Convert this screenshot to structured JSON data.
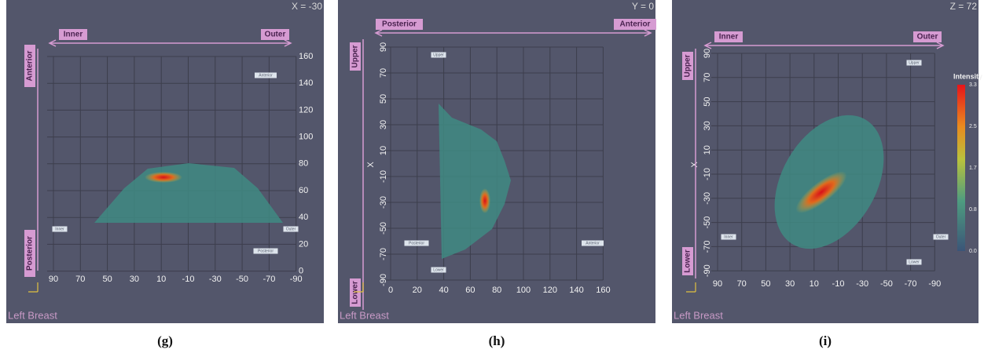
{
  "panels": [
    {
      "slice": "X = -30",
      "caption": "(g)",
      "footer": "Left Breast",
      "top_left": "Inner",
      "top_right": "Outer",
      "side_top": "Anterior",
      "side_bottom": "Posterior",
      "x_ticks": [
        "90",
        "70",
        "50",
        "30",
        "10",
        "-10",
        "-30",
        "-50",
        "-70",
        "-90"
      ],
      "y_ticks": [
        "160",
        "140",
        "120",
        "100",
        "80",
        "60",
        "40",
        "20",
        "0"
      ],
      "markers": [
        "Anterior",
        "Inner",
        "Outer",
        "Posterior"
      ]
    },
    {
      "slice": "Y = 0",
      "caption": "(h)",
      "footer": "Left Breast",
      "top_left": "Posterior",
      "top_right": "Anterior",
      "side_top": "Upper",
      "side_bottom": "Lower",
      "axis_label": "X",
      "x_ticks": [
        "0",
        "20",
        "40",
        "60",
        "80",
        "100",
        "120",
        "140",
        "160"
      ],
      "y_ticks": [
        "90",
        "70",
        "50",
        "30",
        "10",
        "-10",
        "-30",
        "-50",
        "-70",
        "-90"
      ],
      "markers": [
        "Upper",
        "Posterior",
        "Anterior",
        "Lower"
      ]
    },
    {
      "slice": "Z = 72",
      "caption": "(i)",
      "footer": "Left Breast",
      "top_left": "Inner",
      "top_right": "Outer",
      "side_top": "Upper",
      "side_bottom": "Lower",
      "axis_label": "X",
      "x_ticks": [
        "90",
        "70",
        "50",
        "30",
        "10",
        "-10",
        "-30",
        "-50",
        "-70",
        "-90"
      ],
      "y_ticks": [
        "90",
        "70",
        "50",
        "30",
        "10",
        "-10",
        "-30",
        "-50",
        "-70",
        "-90"
      ],
      "markers": [
        "Upper",
        "Inner",
        "Outer",
        "Lower"
      ],
      "colorbar": {
        "title": "Intensity",
        "ticks": [
          "3.3",
          "2.5",
          "1.7",
          "0.8",
          "0.0"
        ]
      }
    }
  ]
}
